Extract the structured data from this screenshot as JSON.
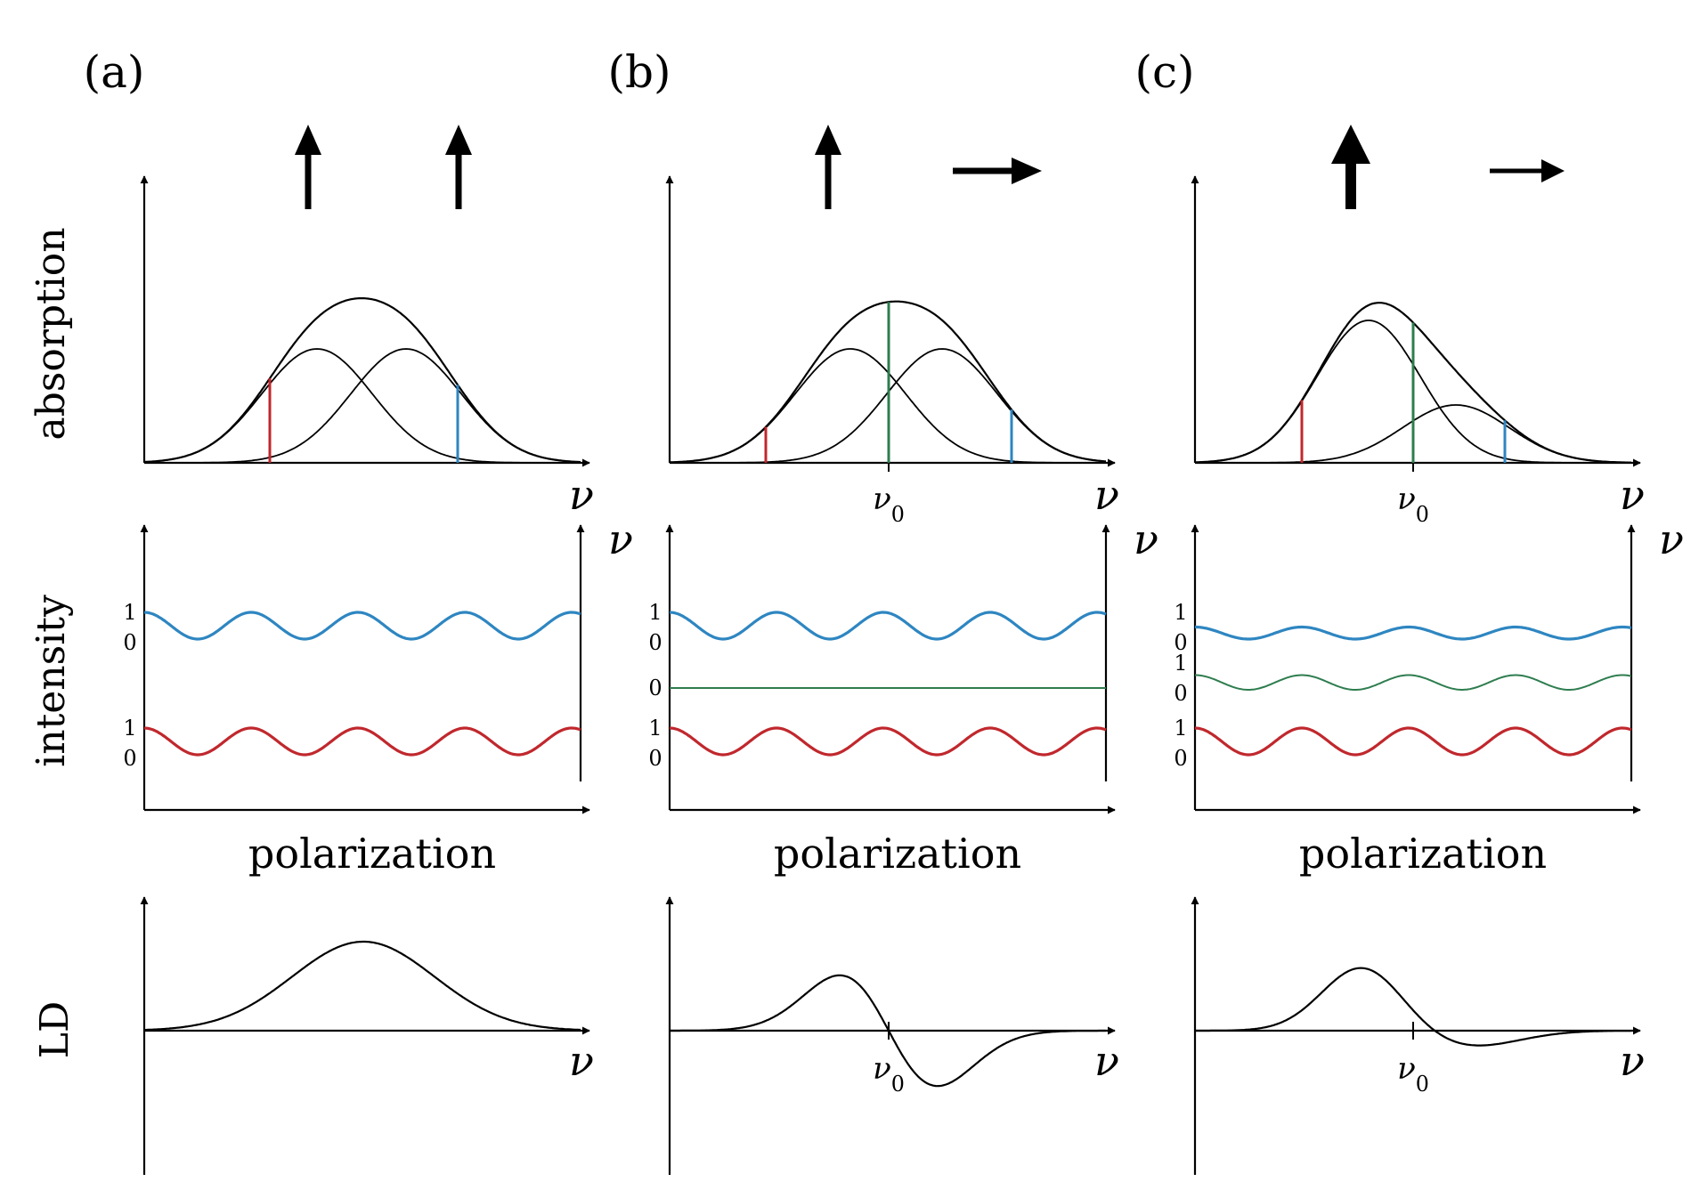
{
  "figure": {
    "panels": [
      {
        "label": "(a)",
        "arrows": [
          {
            "direction": "up",
            "weight": "normal"
          },
          {
            "direction": "up",
            "weight": "normal"
          }
        ],
        "absorption": {
          "xlabel": "ν",
          "nu0_label": null
        },
        "intensity": {
          "xlabel": "polarization",
          "ylabel_right": "ν",
          "traces": [
            {
              "color": "#2e86c1",
              "tick_top": "1",
              "tick_bottom": "0",
              "amplitude": 1.0
            },
            {
              "color": "#c0282d",
              "tick_top": "1",
              "tick_bottom": "0",
              "amplitude": 1.0
            }
          ]
        },
        "ld": {
          "xlabel": "ν",
          "nu0_label": null
        }
      },
      {
        "label": "(b)",
        "arrows": [
          {
            "direction": "up",
            "weight": "normal"
          },
          {
            "direction": "right",
            "weight": "normal"
          }
        ],
        "absorption": {
          "xlabel": "ν",
          "nu0_label": "ν0"
        },
        "intensity": {
          "xlabel": "polarization",
          "ylabel_right": "ν",
          "traces": [
            {
              "color": "#2e86c1",
              "tick_top": "1",
              "tick_bottom": "0",
              "amplitude": 1.0
            },
            {
              "color": "#2e7d4f",
              "tick_top": null,
              "tick_bottom": "0",
              "amplitude": 0.0
            },
            {
              "color": "#c0282d",
              "tick_top": "1",
              "tick_bottom": "0",
              "amplitude": 1.0
            }
          ]
        },
        "ld": {
          "xlabel": "ν",
          "nu0_label": "ν0"
        }
      },
      {
        "label": "(c)",
        "arrows": [
          {
            "direction": "up",
            "weight": "heavy"
          },
          {
            "direction": "right",
            "weight": "light"
          }
        ],
        "absorption": {
          "xlabel": "ν",
          "nu0_label": "ν0"
        },
        "intensity": {
          "xlabel": "polarization",
          "ylabel_right": "ν",
          "traces": [
            {
              "color": "#2e86c1",
              "tick_top": "1",
              "tick_bottom": "0",
              "amplitude": 0.45
            },
            {
              "color": "#2e7d4f",
              "tick_top": "1",
              "tick_bottom": "0",
              "amplitude": 0.55
            },
            {
              "color": "#c0282d",
              "tick_top": "1",
              "tick_bottom": "0",
              "amplitude": 1.0
            }
          ]
        },
        "ld": {
          "xlabel": "ν",
          "nu0_label": "ν0"
        }
      }
    ],
    "row_labels": {
      "absorption": "absorption",
      "intensity": "intensity",
      "ld": "LD"
    },
    "colors": {
      "red": "#c0282d",
      "green": "#2e7d4f",
      "blue": "#2e86c1",
      "axis": "#000000"
    }
  }
}
